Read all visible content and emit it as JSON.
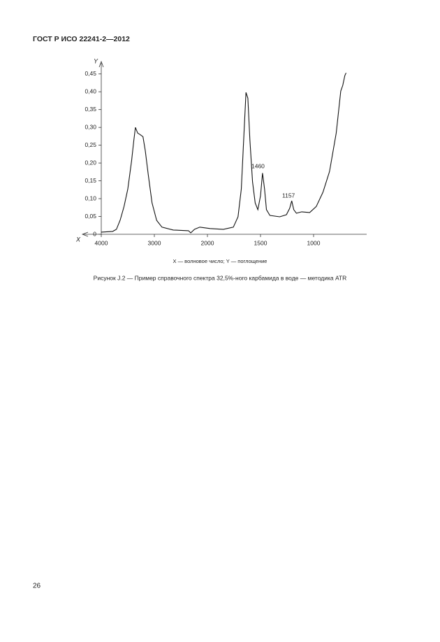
{
  "header": {
    "title": "ГОСТ Р ИСО 22241-2—2012"
  },
  "chart_data": {
    "type": "line",
    "y_axis_label": "Y",
    "x_axis_label": "X",
    "axis_legend": "X — волновое число; Y — поглощение",
    "annotations": [
      "1460",
      "1157"
    ],
    "x_scale_change": 2000,
    "xlim": [
      4000,
      500
    ],
    "xticks": [
      4000,
      3000,
      2000,
      1500,
      1000
    ],
    "ylim": [
      0,
      0.475
    ],
    "yticks": [
      0,
      {
        "value": 0.05,
        "label": "0,05"
      },
      {
        "value": 0.1,
        "label": "0,10"
      },
      {
        "value": 0.15,
        "label": "0,15"
      },
      {
        "value": 0.2,
        "label": "0,20"
      },
      {
        "value": 0.25,
        "label": "0,25"
      },
      {
        "value": 0.3,
        "label": "0,30"
      },
      {
        "value": 0.35,
        "label": "0,35"
      },
      {
        "value": 0.4,
        "label": "0,40"
      },
      {
        "value": 0.45,
        "label": "0,45"
      }
    ],
    "x": [
      4000,
      3786,
      3714,
      3643,
      3571,
      3500,
      3429,
      3386,
      3357,
      3314,
      3271,
      3214,
      3171,
      3114,
      3043,
      2957,
      2857,
      2643,
      2357,
      2314,
      2243,
      2143,
      1975,
      1850,
      1756,
      1712,
      1681,
      1662,
      1637,
      1619,
      1600,
      1575,
      1550,
      1525,
      1500,
      1481,
      1462,
      1444,
      1412,
      1319,
      1256,
      1225,
      1206,
      1187,
      1162,
      1112,
      1037,
      975,
      912,
      850,
      787,
      744,
      725,
      706,
      694
    ],
    "series": [
      {
        "color": "#111111",
        "values": [
          0.006,
          0.008,
          0.014,
          0.04,
          0.078,
          0.127,
          0.206,
          0.265,
          0.3,
          0.284,
          0.28,
          0.274,
          0.235,
          0.167,
          0.088,
          0.039,
          0.02,
          0.012,
          0.01,
          0.004,
          0.014,
          0.02,
          0.016,
          0.014,
          0.02,
          0.049,
          0.127,
          0.245,
          0.398,
          0.382,
          0.265,
          0.147,
          0.088,
          0.069,
          0.108,
          0.172,
          0.127,
          0.069,
          0.053,
          0.049,
          0.055,
          0.073,
          0.094,
          0.069,
          0.059,
          0.063,
          0.061,
          0.078,
          0.118,
          0.176,
          0.284,
          0.402,
          0.418,
          0.445,
          0.453
        ]
      }
    ]
  },
  "caption": "Рисунок J.2 — Пример справочного спектра 32,5%-ного карбамида в воде — методика ATR",
  "page_number": "26"
}
